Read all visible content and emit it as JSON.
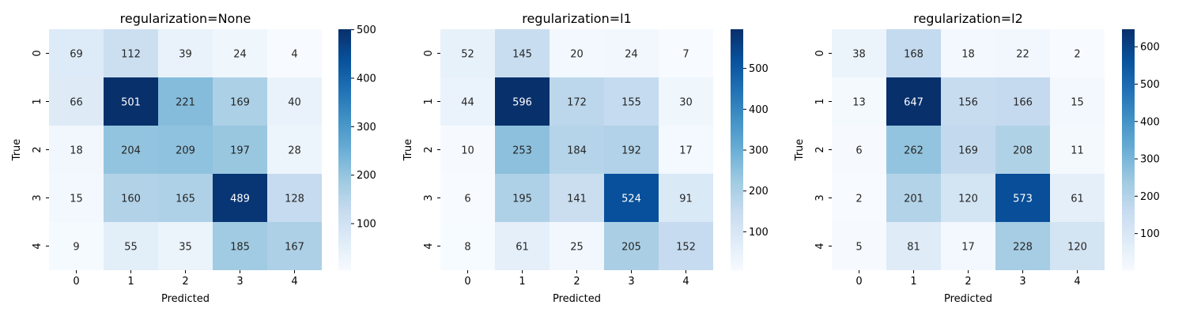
{
  "chart_data": [
    {
      "type": "heatmap",
      "title": "regularization=None",
      "xlabel": "Predicted",
      "ylabel": "True",
      "x_categories": [
        "0",
        "1",
        "2",
        "3",
        "4"
      ],
      "y_categories": [
        "0",
        "1",
        "2",
        "3",
        "4"
      ],
      "values": [
        [
          69,
          112,
          39,
          24,
          4
        ],
        [
          66,
          501,
          221,
          169,
          40
        ],
        [
          18,
          204,
          209,
          197,
          28
        ],
        [
          15,
          160,
          165,
          489,
          128
        ],
        [
          9,
          55,
          35,
          185,
          167
        ]
      ],
      "colorbar": {
        "min": 4,
        "max": 501,
        "ticks": [
          "100",
          "200",
          "300",
          "400",
          "500"
        ]
      },
      "colormap": "Blues"
    },
    {
      "type": "heatmap",
      "title": "regularization=l1",
      "xlabel": "Predicted",
      "ylabel": "True",
      "x_categories": [
        "0",
        "1",
        "2",
        "3",
        "4"
      ],
      "y_categories": [
        "0",
        "1",
        "2",
        "3",
        "4"
      ],
      "values": [
        [
          52,
          145,
          20,
          24,
          7
        ],
        [
          44,
          596,
          172,
          155,
          30
        ],
        [
          10,
          253,
          184,
          192,
          17
        ],
        [
          6,
          195,
          141,
          524,
          91
        ],
        [
          8,
          61,
          25,
          205,
          152
        ]
      ],
      "colorbar": {
        "min": 6,
        "max": 596,
        "ticks": [
          "100",
          "200",
          "300",
          "400",
          "500"
        ]
      },
      "colormap": "Blues"
    },
    {
      "type": "heatmap",
      "title": "regularization=l2",
      "xlabel": "Predicted",
      "ylabel": "True",
      "x_categories": [
        "0",
        "1",
        "2",
        "3",
        "4"
      ],
      "y_categories": [
        "0",
        "1",
        "2",
        "3",
        "4"
      ],
      "values": [
        [
          38,
          168,
          18,
          22,
          2
        ],
        [
          13,
          647,
          156,
          166,
          15
        ],
        [
          6,
          262,
          169,
          208,
          11
        ],
        [
          2,
          201,
          120,
          573,
          61
        ],
        [
          5,
          81,
          17,
          228,
          120
        ]
      ],
      "colorbar": {
        "min": 2,
        "max": 647,
        "ticks": [
          "100",
          "200",
          "300",
          "400",
          "500",
          "600"
        ]
      },
      "colormap": "Blues"
    }
  ]
}
